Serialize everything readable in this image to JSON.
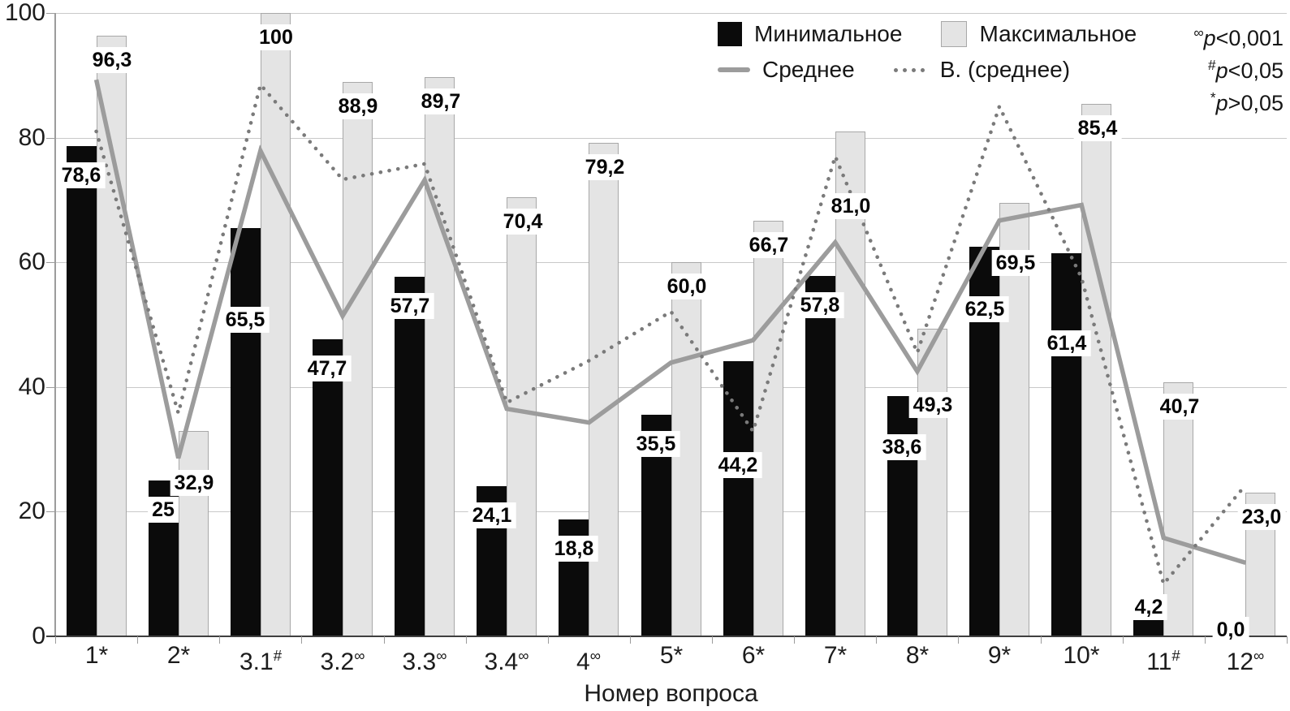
{
  "chart_data": {
    "type": "bar",
    "subtype": "grouped bars with two overlay line series",
    "xlabel": "Номер вопроса",
    "ylim": [
      0,
      100
    ],
    "yticks": [
      0,
      20,
      40,
      60,
      80,
      100
    ],
    "grid": "horizontal",
    "legend_position": "top-inside",
    "categories": [
      "1",
      "2",
      "3.1",
      "3.2",
      "3.3",
      "3.4",
      "4",
      "5",
      "6",
      "7",
      "8",
      "9",
      "10",
      "11",
      "12"
    ],
    "category_marks": [
      "*",
      "*",
      "#",
      "∞",
      "∞",
      "∞",
      "∞",
      "*",
      "*",
      "*",
      "*",
      "*",
      "*",
      "#",
      "∞"
    ],
    "series": [
      {
        "name": "Минимальное",
        "type": "bar",
        "color": "#0b0b0b",
        "values": [
          78.6,
          25,
          65.5,
          47.7,
          57.7,
          24.1,
          18.8,
          35.5,
          44.2,
          57.8,
          38.6,
          62.5,
          61.4,
          4.2,
          0
        ],
        "labels": [
          "78,6",
          "25",
          "65,5",
          "47,7",
          "57,7",
          "24,1",
          "18,8",
          "35,5",
          "44,2",
          "57,8",
          "38,6",
          "62,5",
          "61,4",
          "4,2",
          "0,0"
        ]
      },
      {
        "name": "Максимальное",
        "type": "bar",
        "color": "#e4e4e4",
        "values": [
          96.3,
          32.9,
          100,
          88.9,
          89.7,
          70.4,
          79.2,
          60,
          66.7,
          81,
          49.3,
          69.5,
          85.4,
          40.7,
          23
        ],
        "labels": [
          "96,3",
          "32,9",
          "100",
          "88,9",
          "89,7",
          "70,4",
          "79,2",
          "60,0",
          "66,7",
          "81,0",
          "49,3",
          "69,5",
          "85,4",
          "40,7",
          "23,0"
        ]
      },
      {
        "name": "Среднее",
        "type": "line",
        "style": "solid",
        "color": "#9c9c9c",
        "values": [
          89.3,
          28.6,
          77.9,
          51.4,
          73.2,
          36.5,
          34.3,
          43.9,
          47.5,
          63.2,
          42.5,
          66.7,
          69.2,
          15.8,
          11.8
        ]
      },
      {
        "name": "В. (среднее)",
        "type": "line",
        "style": "dotted",
        "color": "#7a7a7a",
        "values": [
          81.0,
          35.8,
          88.5,
          73.3,
          75.8,
          37.5,
          44.2,
          52.1,
          32.9,
          77.0,
          45.5,
          85.0,
          57.5,
          8.4,
          24.3
        ]
      }
    ]
  },
  "legend": {
    "items": [
      {
        "label": "Минимальное"
      },
      {
        "label": "Максимальное"
      },
      {
        "label": "Среднее"
      },
      {
        "label": "В. (среднее)"
      }
    ]
  },
  "annotations": [
    {
      "mark": "∞",
      "var": "p",
      "cond": "<0,001"
    },
    {
      "mark": "#",
      "var": "p",
      "cond": "<0,05"
    },
    {
      "mark": "*",
      "var": "p",
      "cond": ">0,05"
    }
  ]
}
